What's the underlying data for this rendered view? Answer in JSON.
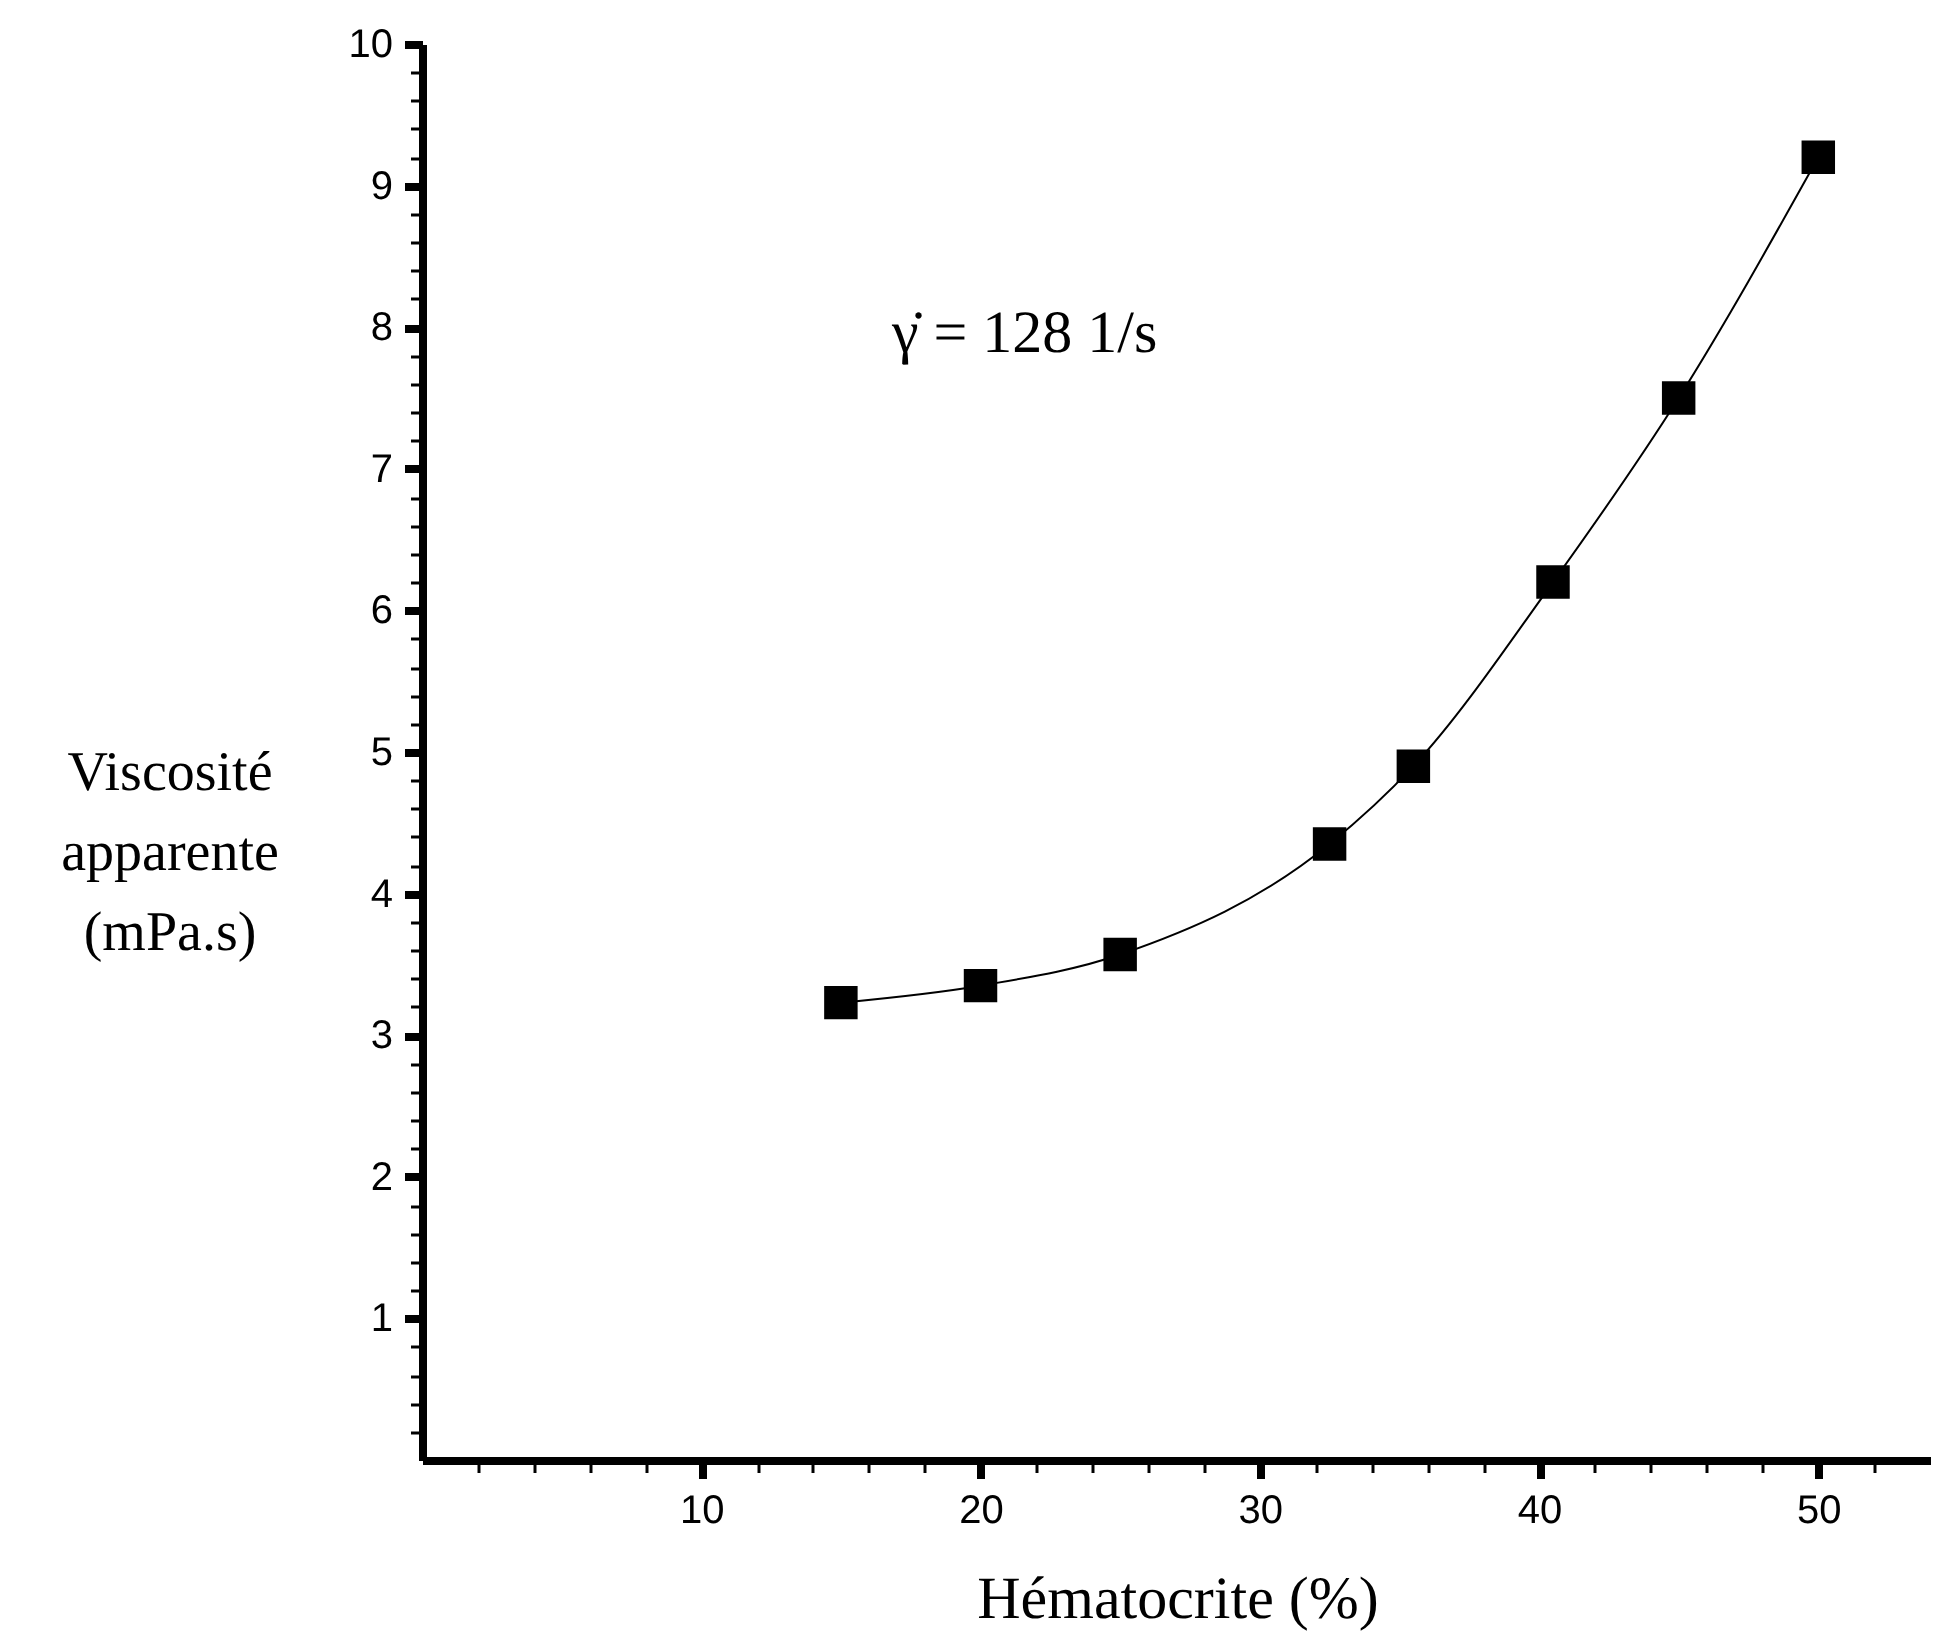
{
  "chart_data": {
    "type": "line",
    "xlabel": "Hématocrite  (%)",
    "ylabel": "Viscosité\napparente\n(mPa.s)",
    "annotations": [
      "γ̇ = 128 1/s"
    ],
    "marker": "square",
    "line_style": "solid",
    "x": [
      15,
      20,
      25,
      32.5,
      35.5,
      40.5,
      45,
      50
    ],
    "series": [
      {
        "color": "#000000",
        "values": [
          3.23,
          3.35,
          3.57,
          4.35,
          4.9,
          6.2,
          7.5,
          9.2
        ]
      }
    ],
    "xlim": [
      0,
      54
    ],
    "xticks": [
      {
        "value": 2,
        "label": null
      },
      {
        "value": 4,
        "label": null
      },
      {
        "value": 6,
        "label": null
      },
      {
        "value": 8,
        "label": null
      },
      10,
      {
        "value": 12,
        "label": null
      },
      {
        "value": 14,
        "label": null
      },
      {
        "value": 16,
        "label": null
      },
      {
        "value": 18,
        "label": null
      },
      20,
      {
        "value": 22,
        "label": null
      },
      {
        "value": 24,
        "label": null
      },
      {
        "value": 26,
        "label": null
      },
      {
        "value": 28,
        "label": null
      },
      30,
      {
        "value": 32,
        "label": null
      },
      {
        "value": 34,
        "label": null
      },
      {
        "value": 36,
        "label": null
      },
      {
        "value": 38,
        "label": null
      },
      40,
      {
        "value": 42,
        "label": null
      },
      {
        "value": 44,
        "label": null
      },
      {
        "value": 46,
        "label": null
      },
      {
        "value": 48,
        "label": null
      },
      50,
      {
        "value": 52,
        "label": null
      }
    ],
    "ylim": [
      0,
      10
    ],
    "yticks": [
      {
        "value": 0.2,
        "label": null
      },
      {
        "value": 0.4,
        "label": null
      },
      {
        "value": 0.6,
        "label": null
      },
      {
        "value": 0.8,
        "label": null
      },
      1,
      {
        "value": 1.2,
        "label": null
      },
      {
        "value": 1.4,
        "label": null
      },
      {
        "value": 1.6,
        "label": null
      },
      {
        "value": 1.8,
        "label": null
      },
      2,
      {
        "value": 2.2,
        "label": null
      },
      {
        "value": 2.4,
        "label": null
      },
      {
        "value": 2.6,
        "label": null
      },
      {
        "value": 2.8,
        "label": null
      },
      3,
      {
        "value": 3.2,
        "label": null
      },
      {
        "value": 3.4,
        "label": null
      },
      {
        "value": 3.6,
        "label": null
      },
      {
        "value": 3.8,
        "label": null
      },
      4,
      {
        "value": 4.2,
        "label": null
      },
      {
        "value": 4.4,
        "label": null
      },
      {
        "value": 4.6,
        "label": null
      },
      {
        "value": 4.8,
        "label": null
      },
      5,
      {
        "value": 5.2,
        "label": null
      },
      {
        "value": 5.4,
        "label": null
      },
      {
        "value": 5.6,
        "label": null
      },
      {
        "value": 5.8,
        "label": null
      },
      6,
      {
        "value": 6.2,
        "label": null
      },
      {
        "value": 6.4,
        "label": null
      },
      {
        "value": 6.6,
        "label": null
      },
      {
        "value": 6.8,
        "label": null
      },
      7,
      {
        "value": 7.2,
        "label": null
      },
      {
        "value": 7.4,
        "label": null
      },
      {
        "value": 7.6,
        "label": null
      },
      {
        "value": 7.8,
        "label": null
      },
      8,
      {
        "value": 8.2,
        "label": null
      },
      {
        "value": 8.4,
        "label": null
      },
      {
        "value": 8.6,
        "label": null
      },
      {
        "value": 8.8,
        "label": null
      },
      9,
      {
        "value": 9.2,
        "label": null
      },
      {
        "value": 9.4,
        "label": null
      },
      {
        "value": 9.6,
        "label": null
      },
      {
        "value": 9.8,
        "label": null
      },
      10
    ]
  }
}
